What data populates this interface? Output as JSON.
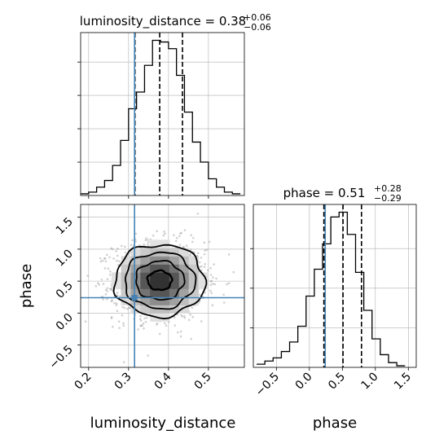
{
  "chart_data": [
    {
      "panel": "marginal-luminosity_distance",
      "type": "histogram",
      "title_param": "luminosity_distance",
      "title_value": "0.38",
      "title_plus": "+0.06",
      "title_minus": "−0.06",
      "xlim": [
        0.18,
        0.59
      ],
      "xticks": [
        0.2,
        0.3,
        0.4,
        0.5
      ],
      "grid": true,
      "bin_edges": [
        0.18,
        0.2,
        0.22,
        0.24,
        0.26,
        0.28,
        0.3,
        0.32,
        0.34,
        0.36,
        0.38,
        0.4,
        0.42,
        0.44,
        0.46,
        0.48,
        0.5,
        0.52,
        0.54,
        0.56,
        0.58
      ],
      "counts": [
        1,
        2,
        5,
        9,
        18,
        33,
        52,
        62,
        78,
        93,
        92,
        88,
        72,
        50,
        32,
        20,
        10,
        5,
        2,
        1
      ],
      "quantiles": [
        0.316,
        0.378,
        0.435
      ],
      "truth": 0.315
    },
    {
      "panel": "marginal-phase",
      "type": "histogram",
      "title_param": "phase",
      "title_value": "0.51",
      "title_plus": "+0.28",
      "title_minus": "−0.29",
      "xlim": [
        -0.85,
        1.62
      ],
      "xticks": [
        -0.5,
        0.0,
        0.5,
        1.0,
        1.5
      ],
      "xtick_labels": [
        "−0.5",
        "0.0",
        "0.5",
        "1.0",
        "1.5"
      ],
      "xlabel": "phase",
      "grid": true,
      "bin_edges": [
        -0.8,
        -0.675,
        -0.55,
        -0.425,
        -0.3,
        -0.175,
        -0.05,
        0.075,
        0.2,
        0.325,
        0.45,
        0.575,
        0.7,
        0.825,
        0.95,
        1.075,
        1.2,
        1.325,
        1.45
      ],
      "counts": [
        2,
        4,
        6,
        10,
        16,
        26,
        45,
        62,
        78,
        95,
        98,
        84,
        60,
        36,
        18,
        8,
        3,
        1
      ],
      "quantiles": [
        0.22,
        0.51,
        0.79
      ],
      "truth": 0.24
    },
    {
      "panel": "joint-luminosity_distance-phase",
      "type": "scatter-density",
      "xlim": [
        0.18,
        0.59
      ],
      "ylim": [
        -0.85,
        1.7
      ],
      "xticks": [
        0.2,
        0.3,
        0.4,
        0.5
      ],
      "yticks": [
        -0.5,
        0.0,
        0.5,
        1.0,
        1.5
      ],
      "ytick_labels": [
        "−0.5",
        "0.0",
        "0.5",
        "1.0",
        "1.5"
      ],
      "xlabel": "luminosity_distance",
      "ylabel": "phase",
      "grid": true,
      "mean": [
        0.378,
        0.51
      ],
      "sigma": [
        0.055,
        0.29
      ],
      "truth": [
        0.315,
        0.24
      ]
    }
  ],
  "colors": {
    "hist": "#000000",
    "truth": "#4682b4",
    "grid": "#b0b0b0",
    "points": "#9a9a9a"
  }
}
